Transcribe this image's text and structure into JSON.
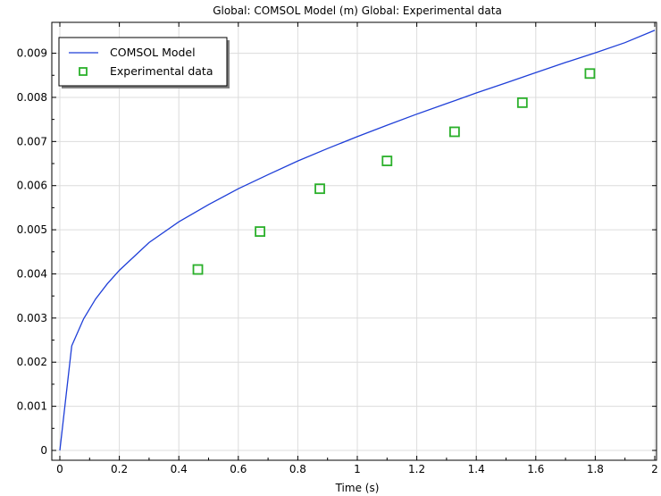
{
  "chart_data": {
    "type": "line",
    "title": "Global: COMSOL Model (m)  Global: Experimental data",
    "xlabel": "Time (s)",
    "ylabel": "",
    "xlim": [
      0,
      2
    ],
    "ylim": [
      0,
      0.0097
    ],
    "x_ticks": [
      0,
      0.2,
      0.4,
      0.6,
      0.8,
      1,
      1.2,
      1.4,
      1.6,
      1.8,
      2
    ],
    "x_tick_labels": [
      "0",
      "0.2",
      "0.4",
      "0.6",
      "0.8",
      "1",
      "1.2",
      "1.4",
      "1.6",
      "1.8",
      "2"
    ],
    "y_ticks": [
      0,
      0.001,
      0.002,
      0.003,
      0.004,
      0.005,
      0.006,
      0.007,
      0.008,
      0.009
    ],
    "y_tick_labels": [
      "0",
      "0.001",
      "0.002",
      "0.003",
      "0.004",
      "0.005",
      "0.006",
      "0.007",
      "0.008",
      "0.009"
    ],
    "grid": true,
    "legend_position": "top-left",
    "series": [
      {
        "name": "COMSOL Model",
        "kind": "line",
        "color": "#1f3fd8",
        "x": [
          0,
          0.04,
          0.08,
          0.12,
          0.16,
          0.2,
          0.3,
          0.4,
          0.5,
          0.6,
          0.7,
          0.8,
          0.9,
          1.0,
          1.1,
          1.2,
          1.3,
          1.4,
          1.5,
          1.6,
          1.7,
          1.8,
          1.9,
          2.0
        ],
        "y": [
          0,
          0.00237,
          0.00298,
          0.00343,
          0.00378,
          0.00408,
          0.00471,
          0.00518,
          0.00557,
          0.00593,
          0.00625,
          0.00656,
          0.00684,
          0.00711,
          0.00737,
          0.00762,
          0.00786,
          0.0081,
          0.00833,
          0.00856,
          0.00879,
          0.00901,
          0.00924,
          0.00952
        ]
      },
      {
        "name": "Experimental data",
        "kind": "scatter",
        "marker": "square",
        "color": "#2ab02a",
        "x": [
          0.464,
          0.673,
          0.874,
          1.1,
          1.327,
          1.555,
          1.782
        ],
        "y": [
          0.0041,
          0.00496,
          0.00593,
          0.00656,
          0.00722,
          0.00788,
          0.00854
        ]
      }
    ]
  }
}
